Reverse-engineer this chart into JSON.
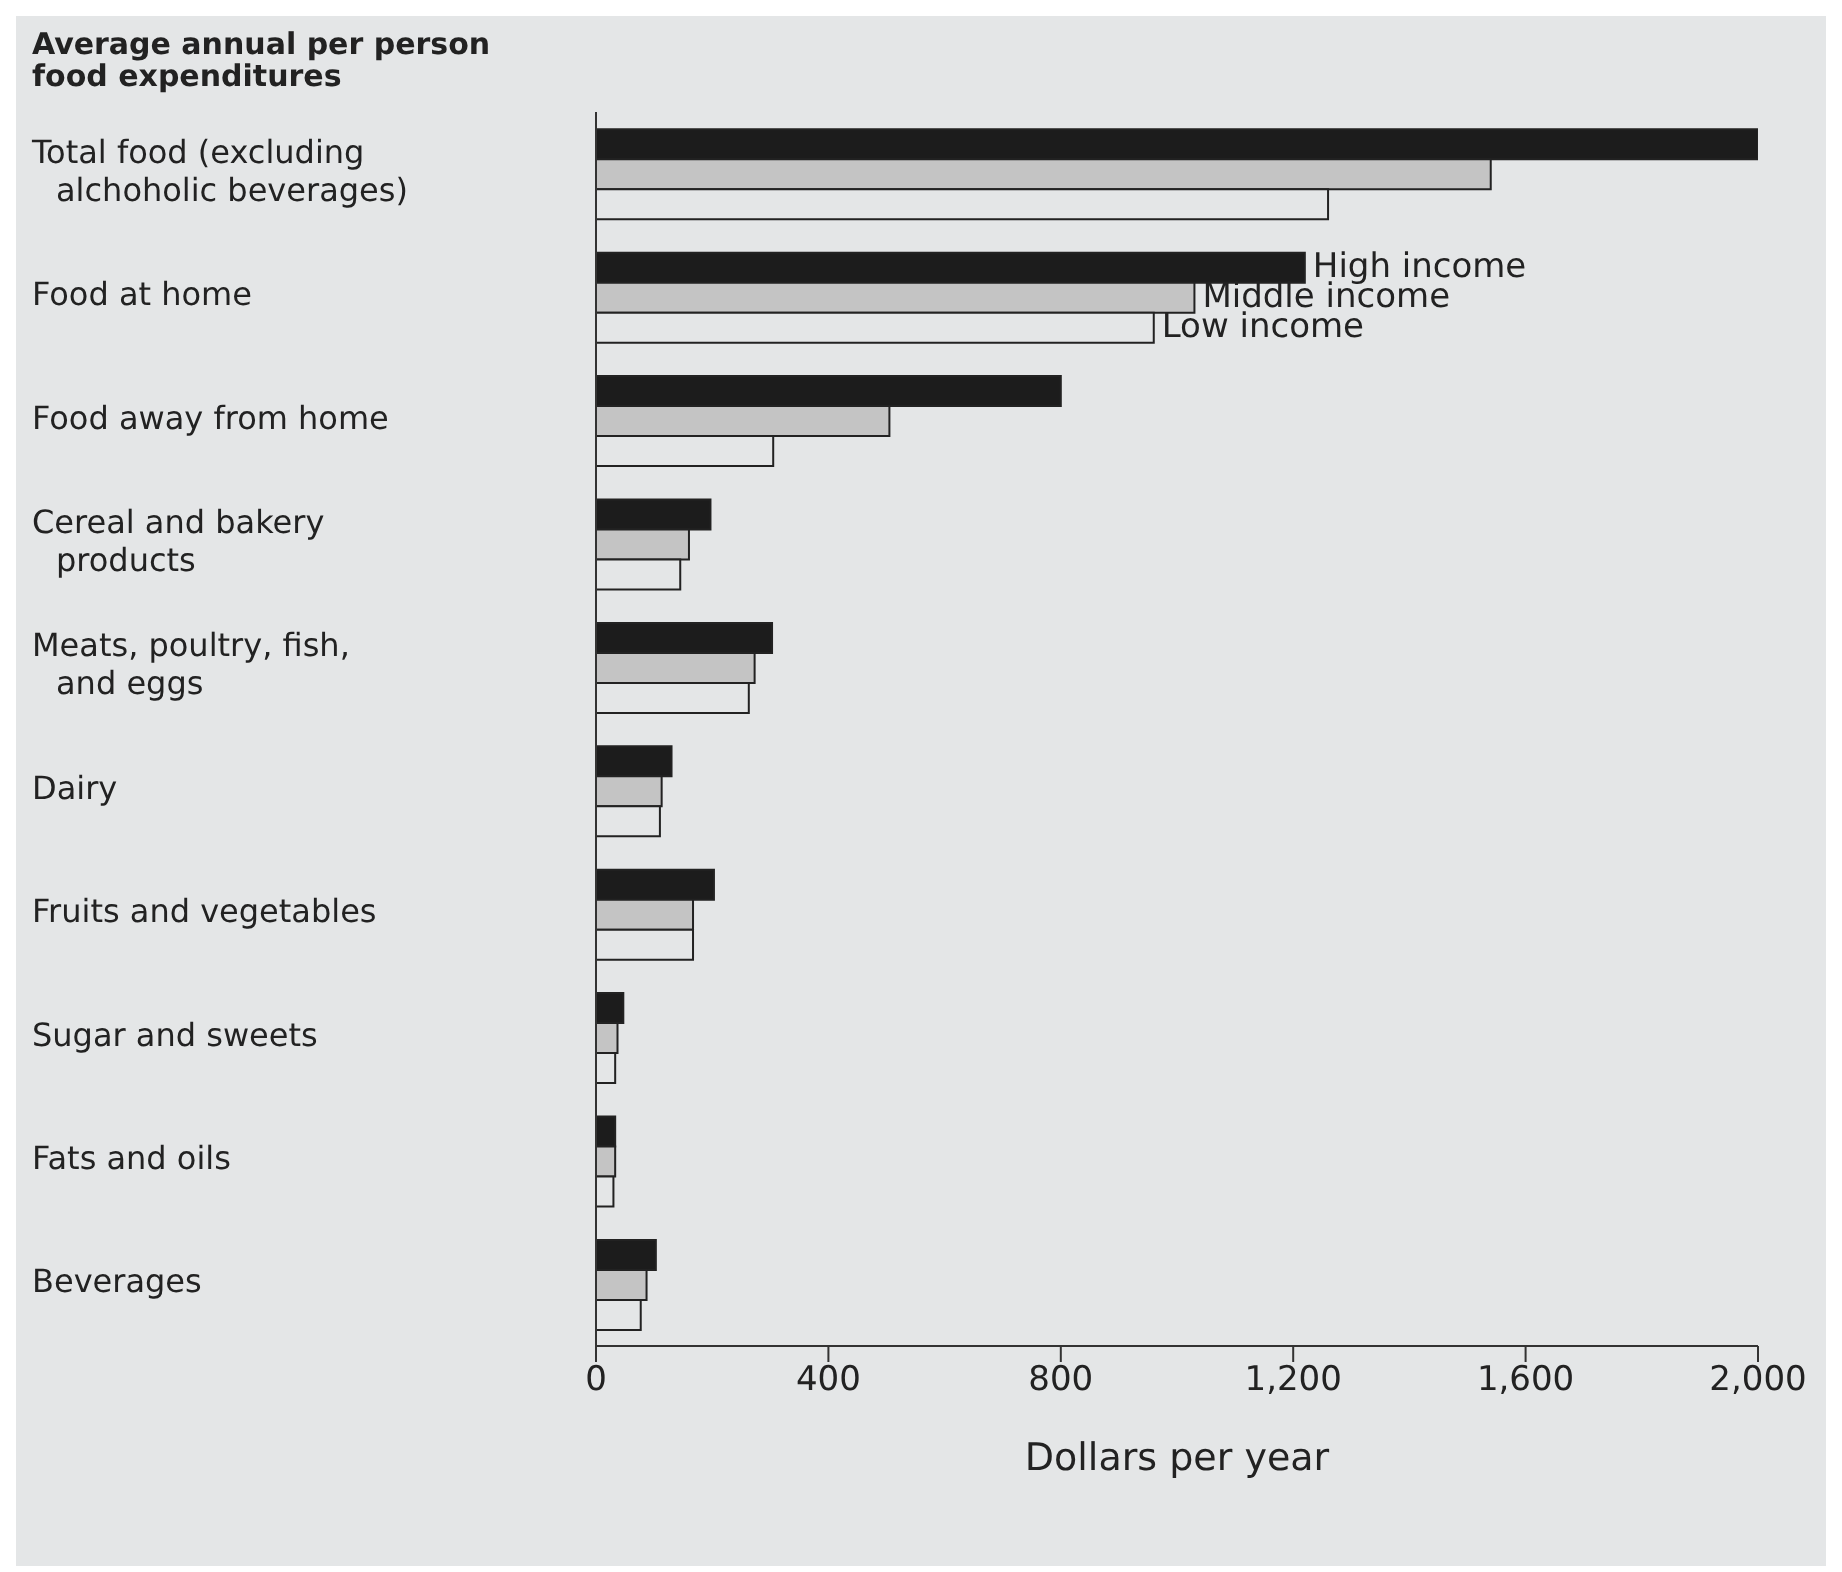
{
  "chart_data": {
    "type": "bar",
    "orientation": "horizontal",
    "title": "Average annual per person food expenditures",
    "xlabel": "Dollars per year",
    "categories": [
      "Total food (excluding alchoholic beverages)",
      "Food at home",
      "Food away from home",
      "Cereal and bakery products",
      "Meats, poultry, fish, and eggs",
      "Dairy",
      "Fruits and vegetables",
      "Sugar and sweets",
      "Fats and oils",
      "Beverages"
    ],
    "series": [
      {
        "name": "High income",
        "color": "#1c1c1c",
        "values": [
          2000,
          1220,
          800,
          197,
          303,
          130,
          203,
          47,
          33,
          103
        ]
      },
      {
        "name": "Middle income",
        "color": "#c4c4c4",
        "values": [
          1540,
          1030,
          505,
          160,
          273,
          113,
          167,
          37,
          33,
          87
        ]
      },
      {
        "name": "Low income",
        "color": "#e4e6e7",
        "values": [
          1260,
          960,
          305,
          145,
          263,
          110,
          167,
          33,
          30,
          77
        ]
      }
    ],
    "xlim": [
      0,
      2000
    ],
    "xticks": [
      0,
      {
        "value": 400,
        "label": "400"
      },
      {
        "value": 800,
        "label": "800"
      },
      {
        "value": 1200,
        "label": "1,200"
      },
      {
        "value": 1600,
        "label": "1,600"
      },
      {
        "value": 2000,
        "label": "2,000"
      }
    ],
    "grid": false,
    "legend": false
  }
}
